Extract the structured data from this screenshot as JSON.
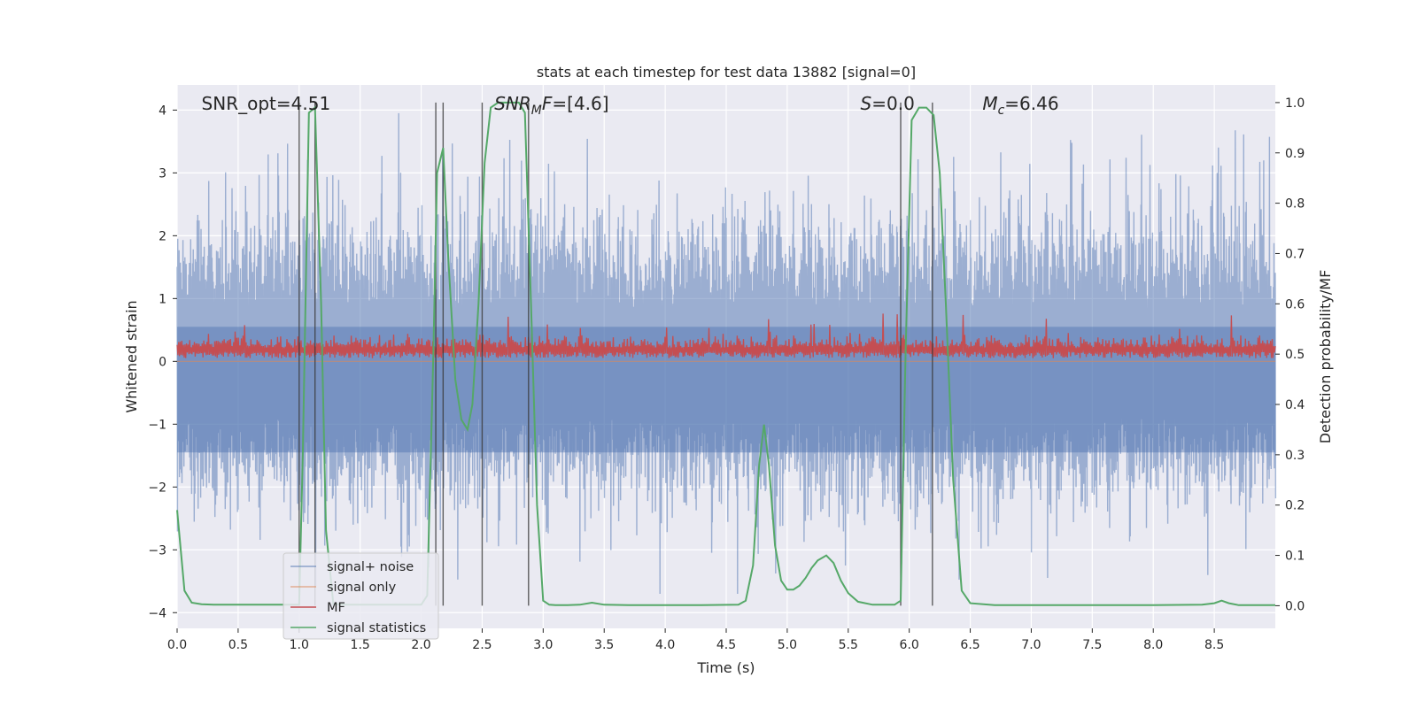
{
  "chart_data": {
    "type": "line",
    "title": "stats at each timestep for test data 13882 [signal=0]",
    "xlabel": "Time (s)",
    "ylabel": "Whitened strain",
    "ylabel_right": "Detection probability/MF",
    "xlim": [
      0.0,
      9.0
    ],
    "ylim": [
      -4.25,
      4.4
    ],
    "ylim_right": [
      -0.045,
      1.035
    ],
    "x_ticks": [
      0.0,
      0.5,
      1.0,
      1.5,
      2.0,
      2.5,
      3.0,
      3.5,
      4.0,
      4.5,
      5.0,
      5.5,
      6.0,
      6.5,
      7.0,
      7.5,
      8.0,
      8.5
    ],
    "x_tick_labels": [
      "0.0",
      "0.5",
      "1.0",
      "1.5",
      "2.0",
      "2.5",
      "3.0",
      "3.5",
      "4.0",
      "4.5",
      "5.0",
      "5.5",
      "6.0",
      "6.5",
      "7.0",
      "7.5",
      "8.0",
      "8.5"
    ],
    "y_ticks": [
      4,
      3,
      2,
      1,
      0,
      -1,
      -2,
      -3,
      -4
    ],
    "y_tick_labels": [
      "4",
      "3",
      "2",
      "1",
      "0",
      "−1",
      "−2",
      "−3",
      "−4"
    ],
    "y_ticks_right": [
      1.0,
      0.9,
      0.8,
      0.7,
      0.6,
      0.5,
      0.4,
      0.3,
      0.2,
      0.1,
      0.0
    ],
    "y_tick_labels_right": [
      "1.0",
      "0.9",
      "0.8",
      "0.7",
      "0.6",
      "0.5",
      "0.4",
      "0.3",
      "0.2",
      "0.1",
      "0.0"
    ],
    "grid": true,
    "legend_position": "lower-left",
    "annotations": [
      {
        "prefix": "SNR_opt",
        "sub": "",
        "suffix": "=4.51",
        "italic": false,
        "x": 0.2
      },
      {
        "prefix": "SNR",
        "sub": "M",
        "suffix": "F=[4.6]",
        "italic": true,
        "x": 2.6
      },
      {
        "prefix": "S",
        "sub": "",
        "suffix": "=0.0",
        "italic": true,
        "x": 5.6
      },
      {
        "prefix": "M",
        "sub": "c",
        "suffix": "=6.46",
        "italic": true,
        "x": 6.6
      }
    ],
    "series": [
      {
        "name": "signal+ noise",
        "color": "#4c72b0",
        "alpha": 0.5,
        "description": "whitened strain noise, roughly symmetric about zero with amplitude envelope ~ ±2.5 and spikes to ~±4"
      },
      {
        "name": "signal only",
        "color": "#dd8452",
        "alpha": 0.5,
        "values_note": "zero everywhere (no signal present)"
      },
      {
        "name": "MF",
        "color": "#c44e52",
        "description": "matched filter output, baseline ~0.05–0.55 with peaks to ~0.85"
      },
      {
        "name": "signal statistics",
        "color": "#55a868",
        "axis": "right",
        "x": [
          0.0,
          0.06,
          0.12,
          0.2,
          0.3,
          0.5,
          0.8,
          0.95,
          1.0,
          1.03,
          1.08,
          1.13,
          1.18,
          1.22,
          1.28,
          1.4,
          1.6,
          1.8,
          1.9,
          2.0,
          2.05,
          2.1,
          2.13,
          2.18,
          2.22,
          2.28,
          2.33,
          2.38,
          2.42,
          2.47,
          2.52,
          2.57,
          2.63,
          2.7,
          2.8,
          2.85,
          2.9,
          2.95,
          3.0,
          3.05,
          3.1,
          3.2,
          3.3,
          3.4,
          3.5,
          3.7,
          4.0,
          4.3,
          4.6,
          4.66,
          4.72,
          4.77,
          4.81,
          4.85,
          4.9,
          4.95,
          5.0,
          5.05,
          5.1,
          5.15,
          5.2,
          5.25,
          5.32,
          5.38,
          5.44,
          5.5,
          5.58,
          5.7,
          5.8,
          5.88,
          5.93,
          5.97,
          6.02,
          6.08,
          6.14,
          6.2,
          6.25,
          6.3,
          6.36,
          6.43,
          6.5,
          6.7,
          7.0,
          7.5,
          8.0,
          8.4,
          8.5,
          8.56,
          8.62,
          8.7,
          8.8,
          8.9,
          9.0
        ],
        "values": [
          0.19,
          0.03,
          0.006,
          0.003,
          0.002,
          0.002,
          0.002,
          0.002,
          0.002,
          0.3,
          0.98,
          0.99,
          0.6,
          0.15,
          0.003,
          0.002,
          0.002,
          0.002,
          0.002,
          0.002,
          0.02,
          0.5,
          0.86,
          0.91,
          0.7,
          0.45,
          0.37,
          0.35,
          0.4,
          0.6,
          0.88,
          0.99,
          1.0,
          1.0,
          1.0,
          0.98,
          0.6,
          0.2,
          0.01,
          0.002,
          0.001,
          0.001,
          0.002,
          0.006,
          0.002,
          0.001,
          0.001,
          0.001,
          0.002,
          0.01,
          0.08,
          0.28,
          0.36,
          0.28,
          0.12,
          0.05,
          0.032,
          0.032,
          0.04,
          0.055,
          0.075,
          0.09,
          0.1,
          0.085,
          0.05,
          0.025,
          0.008,
          0.002,
          0.002,
          0.002,
          0.01,
          0.5,
          0.965,
          0.99,
          0.99,
          0.975,
          0.86,
          0.6,
          0.25,
          0.03,
          0.005,
          0.001,
          0.001,
          0.001,
          0.001,
          0.002,
          0.005,
          0.01,
          0.005,
          0.001,
          0.001,
          0.001,
          0.001
        ]
      }
    ],
    "vertical_markers": [
      1.0,
      1.13,
      2.12,
      2.18,
      2.5,
      2.88,
      5.93,
      6.19
    ]
  }
}
